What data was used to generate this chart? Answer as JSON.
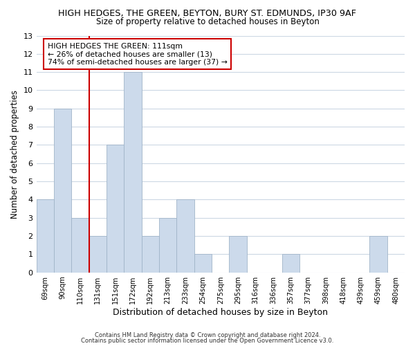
{
  "title": "HIGH HEDGES, THE GREEN, BEYTON, BURY ST. EDMUNDS, IP30 9AF",
  "subtitle": "Size of property relative to detached houses in Beyton",
  "xlabel": "Distribution of detached houses by size in Beyton",
  "ylabel": "Number of detached properties",
  "bar_labels": [
    "69sqm",
    "90sqm",
    "110sqm",
    "131sqm",
    "151sqm",
    "172sqm",
    "192sqm",
    "213sqm",
    "233sqm",
    "254sqm",
    "275sqm",
    "295sqm",
    "316sqm",
    "336sqm",
    "357sqm",
    "377sqm",
    "398sqm",
    "418sqm",
    "439sqm",
    "459sqm",
    "480sqm"
  ],
  "bar_values": [
    4,
    9,
    3,
    2,
    7,
    11,
    2,
    3,
    4,
    1,
    0,
    2,
    0,
    0,
    1,
    0,
    0,
    0,
    0,
    2,
    0
  ],
  "bar_color": "#ccdaeb",
  "bar_edge_color": "#a0b4c8",
  "highlight_index": 2,
  "highlight_line_color": "#cc0000",
  "annotation_text": "HIGH HEDGES THE GREEN: 111sqm\n← 26% of detached houses are smaller (13)\n74% of semi-detached houses are larger (37) →",
  "annotation_box_color": "#ffffff",
  "annotation_box_edge": "#cc0000",
  "ylim": [
    0,
    13
  ],
  "yticks": [
    0,
    1,
    2,
    3,
    4,
    5,
    6,
    7,
    8,
    9,
    10,
    11,
    12,
    13
  ],
  "footer1": "Contains HM Land Registry data © Crown copyright and database right 2024.",
  "footer2": "Contains public sector information licensed under the Open Government Licence v3.0.",
  "bg_color": "#ffffff",
  "grid_color": "#ccd8e4"
}
